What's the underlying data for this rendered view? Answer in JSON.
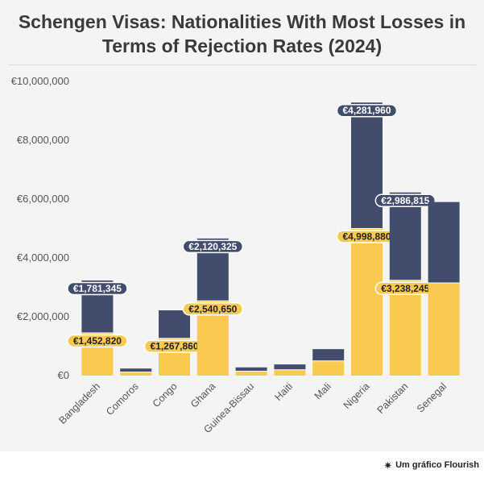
{
  "header": {
    "title_line1": "Schengen Visas: Nationalities With Most Losses in",
    "title_line2": "Terms of Rejection Rates (2024)"
  },
  "footer": {
    "credit": "Um gráfico Flourish",
    "icon": "flourish-asterisk-icon"
  },
  "colors": {
    "bottom_series": "#f9c950",
    "top_series": "#424c6c",
    "panel": "#f4f4f4"
  },
  "chart_data": {
    "type": "bar",
    "stacked": true,
    "title": "Schengen Visas: Nationalities With Most Losses in Terms of Rejection Rates (2024)",
    "categories": [
      "Bangladesh",
      "Comoros",
      "Congo",
      "Ghana",
      "Guinea-Bissau",
      "Haiti",
      "Mali",
      "Nigeria",
      "Pakistan",
      "Senegal"
    ],
    "series": [
      {
        "name": "bottom",
        "color": "#f9c950",
        "values": [
          1452820,
          120000,
          1267860,
          2540650,
          150000,
          200000,
          500000,
          4998880,
          3238245,
          3150000
        ],
        "labels": [
          "€1,452,820",
          null,
          "€1,267,860",
          "€2,540,650",
          null,
          null,
          null,
          "€4,998,880",
          "€3,238,245",
          null
        ]
      },
      {
        "name": "top",
        "color": "#424c6c",
        "values": [
          1781345,
          120000,
          950000,
          2120325,
          130000,
          180000,
          400000,
          4281960,
          2986815,
          2750000
        ],
        "labels": [
          "€1,781,345",
          null,
          null,
          "€2,120,325",
          null,
          null,
          null,
          "€4,281,960",
          "€2,986,815",
          null
        ]
      }
    ],
    "ylim": [
      0,
      10000000
    ],
    "y_ticks": [
      {
        "value": 0,
        "label": "€0"
      },
      {
        "value": 2000000,
        "label": "€2,000,000"
      },
      {
        "value": 4000000,
        "label": "€4,000,000"
      },
      {
        "value": 6000000,
        "label": "€6,000,000"
      },
      {
        "value": 8000000,
        "label": "€8,000,000"
      },
      {
        "value": 10000000,
        "label": "€10,000,000"
      }
    ],
    "xlabel": "",
    "ylabel": "",
    "grid": false
  }
}
